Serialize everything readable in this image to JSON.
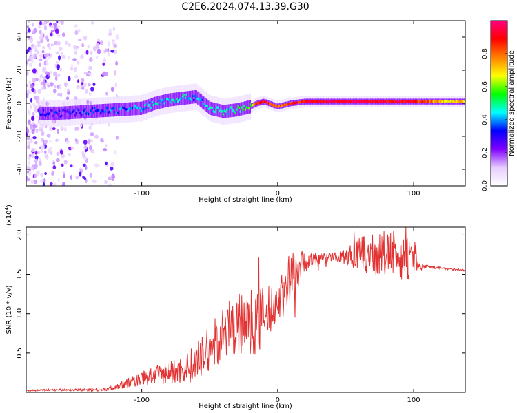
{
  "title": "C2E6.2024.074.13.39.G30",
  "colors": {
    "snr_line": "#e23232",
    "colorbar_stops": [
      "#ffffff",
      "#e6ccff",
      "#8000ff",
      "#0000ff",
      "#00ffff",
      "#00ff00",
      "#ffff00",
      "#ff8000",
      "#ff0000",
      "#ff0080"
    ]
  },
  "chart_data": [
    {
      "type": "heatmap",
      "xlabel": "Height of straight line (km)",
      "ylabel": "Frequency (Hz)",
      "xlim": [
        -185,
        138
      ],
      "ylim": [
        -50,
        50
      ],
      "x_ticks": [
        -100,
        0,
        100
      ],
      "y_ticks": [
        -40,
        -20,
        0,
        20,
        40
      ],
      "colorbar": {
        "label": "Normalized spectral amplitude",
        "range": [
          0,
          1
        ],
        "ticks": [
          "0.0",
          "0.2",
          "0.4",
          "0.6",
          "0.8"
        ]
      },
      "ridge": {
        "x": [
          -160,
          -140,
          -120,
          -100,
          -90,
          -80,
          -70,
          -60,
          -50,
          -40,
          -30,
          -20,
          -15,
          -10,
          0,
          10,
          20,
          40,
          60,
          80,
          100,
          120,
          138
        ],
        "freq": [
          -6,
          -5,
          -4,
          -3,
          0,
          2,
          3,
          4,
          -3,
          -5,
          -4,
          -2,
          0,
          1,
          -2,
          0,
          1,
          1,
          1,
          1,
          1,
          1,
          1
        ],
        "amplitude": [
          0.3,
          0.35,
          0.35,
          0.4,
          0.45,
          0.45,
          0.45,
          0.4,
          0.45,
          0.45,
          0.5,
          0.55,
          0.9,
          0.9,
          0.8,
          0.85,
          0.9,
          0.95,
          0.95,
          0.9,
          0.9,
          0.7,
          0.7
        ]
      },
      "noise_region_x": [
        -185,
        -118
      ]
    },
    {
      "type": "line",
      "xlabel": "Height of straight line (km)",
      "ylabel": "SNR (10 * v/v)",
      "y_multiplier": "(x10",
      "y_multiplier_exp": "4",
      "y_multiplier_close": ")",
      "xlim": [
        -185,
        138
      ],
      "ylim": [
        0,
        2.1
      ],
      "x_ticks": [
        -100,
        0,
        100
      ],
      "y_ticks": [
        "0.5",
        "1.0",
        "1.5",
        "2.0"
      ],
      "envelope": {
        "x": [
          -185,
          -170,
          -140,
          -125,
          -110,
          -100,
          -90,
          -80,
          -70,
          -60,
          -50,
          -40,
          -30,
          -20,
          -10,
          -5,
          0,
          5,
          10,
          15,
          20,
          30,
          40,
          50,
          60,
          70,
          80,
          90,
          100,
          105,
          110,
          120,
          138
        ],
        "y": [
          0.02,
          0.03,
          0.03,
          0.04,
          0.12,
          0.18,
          0.22,
          0.25,
          0.28,
          0.38,
          0.55,
          0.75,
          0.85,
          0.9,
          0.95,
          1.05,
          1.15,
          1.3,
          1.45,
          1.6,
          1.65,
          1.7,
          1.72,
          1.72,
          1.75,
          1.75,
          1.76,
          1.74,
          1.65,
          1.6,
          1.6,
          1.58,
          1.55
        ]
      },
      "noise_amplitude": {
        "x": [
          -185,
          -125,
          -110,
          -90,
          -70,
          -50,
          -30,
          -15,
          0,
          10,
          20,
          40,
          50,
          60,
          80,
          95,
          105,
          110,
          138
        ],
        "a": [
          0.01,
          0.02,
          0.07,
          0.12,
          0.18,
          0.3,
          0.4,
          0.45,
          0.25,
          0.4,
          0.12,
          0.05,
          0.1,
          0.22,
          0.3,
          0.3,
          0.05,
          0.02,
          0.01
        ]
      }
    }
  ]
}
